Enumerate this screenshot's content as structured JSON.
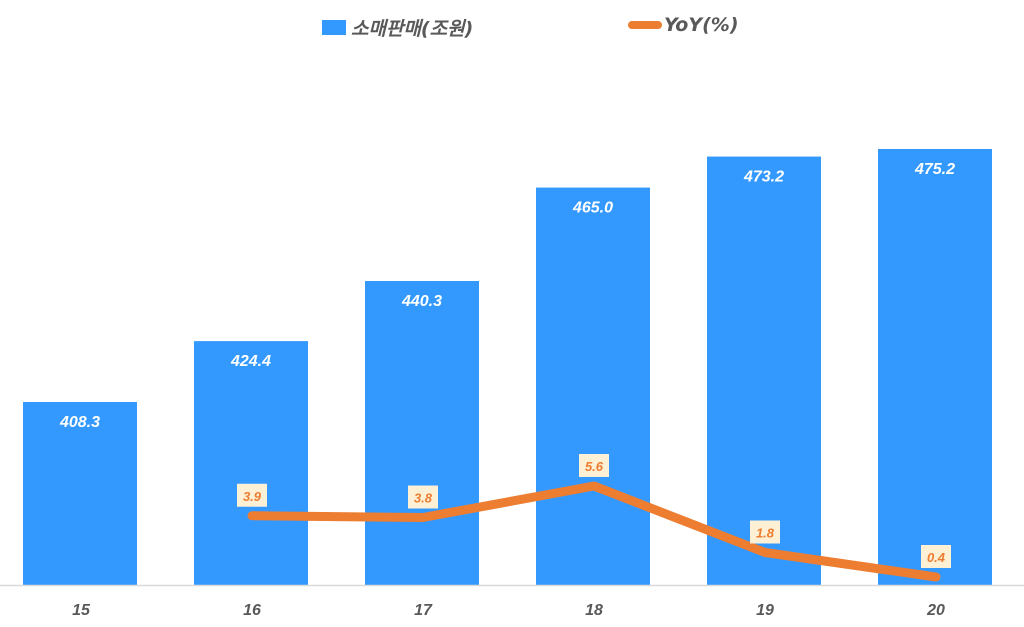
{
  "legend": {
    "bar_label": "소매판매(조원)",
    "line_label": "YoY(%)"
  },
  "colors": {
    "bar": "#3399ff",
    "line": "#ed7d31",
    "label_box": "#fdf0d5",
    "axis_text": "#595959"
  },
  "chart_data": {
    "type": "bar",
    "title": "",
    "xlabel": "",
    "ylabel": "",
    "categories": [
      "15",
      "16",
      "17",
      "18",
      "19",
      "20"
    ],
    "series": [
      {
        "name": "소매판매(조원)",
        "type": "bar",
        "values": [
          408.3,
          424.4,
          440.3,
          465.0,
          473.2,
          475.2
        ],
        "labels": [
          "408.3",
          "424.4",
          "440.3",
          "465.0",
          "473.2",
          "475.2"
        ]
      },
      {
        "name": "YoY(%)",
        "type": "line",
        "values": [
          null,
          3.9,
          3.8,
          5.6,
          1.8,
          0.4
        ],
        "labels": [
          "",
          "3.9",
          "3.8",
          "5.6",
          "1.8",
          "0.4"
        ]
      }
    ],
    "legend_position": "top",
    "grid": false
  }
}
